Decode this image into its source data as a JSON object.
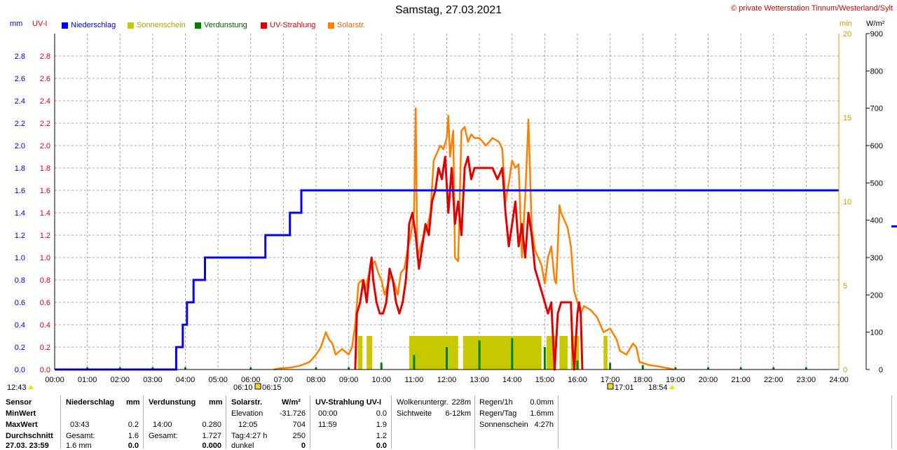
{
  "title": "Samstag, 27.03.2021",
  "copyright": "© private Wetterstation Tinnum/Westerland/Sylt",
  "units": {
    "mm": "mm",
    "uvi": "UV-I",
    "min": "min",
    "wm2": "W/m²"
  },
  "colors": {
    "niederschlag": "#0000ff",
    "sonnenschein": "#c8c800",
    "verdunstung": "#008000",
    "uv": "#e00000",
    "solar": "#ff8000",
    "grid": "#a0a0a0"
  },
  "legend": [
    {
      "label": "Niederschlag",
      "color": "#0000ff"
    },
    {
      "label": "Sonnenschein",
      "color": "#c8c800"
    },
    {
      "label": "Verdunstung",
      "color": "#008000"
    },
    {
      "label": "UV-Strahlung",
      "color": "#e00000"
    },
    {
      "label": "Solarstr.",
      "color": "#ff8000"
    }
  ],
  "markers": {
    "left": "12:43",
    "sunrise_a": "06:10",
    "sunrise_b": "06:15",
    "sunset_a": "17:01",
    "sunset_b": "18:54"
  },
  "chart_data": {
    "type": "line",
    "title": "Samstag, 27.03.2021",
    "x_ticks": [
      "00:00",
      "01:00",
      "02:00",
      "03:00",
      "04:00",
      "05:00",
      "06:00",
      "07:00",
      "08:00",
      "09:00",
      "10:00",
      "11:00",
      "12:00",
      "13:00",
      "14:00",
      "15:00",
      "16:00",
      "17:00",
      "18:00",
      "19:00",
      "20:00",
      "21:00",
      "22:00",
      "23:00",
      "24:00"
    ],
    "y_left_ticks": [
      "0.0",
      "0.2",
      "0.4",
      "0.6",
      "0.8",
      "1.0",
      "1.2",
      "1.4",
      "1.6",
      "1.8",
      "2.0",
      "2.2",
      "2.4",
      "2.6",
      "2.8"
    ],
    "y_min_ticks": [
      "0",
      "5",
      "10",
      "15",
      "20"
    ],
    "y_wm2_ticks": [
      "0",
      "100",
      "200",
      "300",
      "400",
      "500",
      "600",
      "700",
      "800",
      "900"
    ],
    "ylim_mm": [
      0,
      3.0
    ],
    "ylim_uvi": [
      0,
      3.0
    ],
    "ylim_min": [
      0,
      20
    ],
    "ylim_wm2": [
      0,
      900
    ],
    "grid": true,
    "series": [
      {
        "name": "Niederschlag",
        "unit": "mm",
        "color": "#0000ff",
        "points": [
          [
            0,
            0
          ],
          [
            3.72,
            0
          ],
          [
            3.72,
            0.2
          ],
          [
            3.92,
            0.2
          ],
          [
            3.92,
            0.4
          ],
          [
            4.05,
            0.4
          ],
          [
            4.05,
            0.6
          ],
          [
            4.25,
            0.6
          ],
          [
            4.25,
            0.8
          ],
          [
            4.6,
            0.8
          ],
          [
            4.6,
            1.0
          ],
          [
            6.45,
            1.0
          ],
          [
            6.45,
            1.2
          ],
          [
            7.2,
            1.2
          ],
          [
            7.2,
            1.4
          ],
          [
            7.55,
            1.4
          ],
          [
            7.55,
            1.6
          ],
          [
            24,
            1.6
          ]
        ]
      },
      {
        "name": "UV-Strahlung",
        "unit": "UV-I",
        "color": "#e00000",
        "points": [
          [
            9.2,
            0
          ],
          [
            9.25,
            0.5
          ],
          [
            9.35,
            0.6
          ],
          [
            9.45,
            0.8
          ],
          [
            9.55,
            0.6
          ],
          [
            9.65,
            0.9
          ],
          [
            9.7,
            1.0
          ],
          [
            9.75,
            0.8
          ],
          [
            9.85,
            0.6
          ],
          [
            9.95,
            0.5
          ],
          [
            10.05,
            0.5
          ],
          [
            10.15,
            0.6
          ],
          [
            10.25,
            0.9
          ],
          [
            10.35,
            0.8
          ],
          [
            10.45,
            0.6
          ],
          [
            10.55,
            0.5
          ],
          [
            10.65,
            0.6
          ],
          [
            10.75,
            0.8
          ],
          [
            10.8,
            1.0
          ],
          [
            10.85,
            1.3
          ],
          [
            10.95,
            1.4
          ],
          [
            11.05,
            1.2
          ],
          [
            11.15,
            0.9
          ],
          [
            11.25,
            1.1
          ],
          [
            11.35,
            1.3
          ],
          [
            11.45,
            1.2
          ],
          [
            11.55,
            1.5
          ],
          [
            11.65,
            1.6
          ],
          [
            11.75,
            1.8
          ],
          [
            11.85,
            1.7
          ],
          [
            11.95,
            1.9
          ],
          [
            12.05,
            1.4
          ],
          [
            12.15,
            1.8
          ],
          [
            12.25,
            1.3
          ],
          [
            12.35,
            1.5
          ],
          [
            12.45,
            1.2
          ],
          [
            12.55,
            1.8
          ],
          [
            12.65,
            1.9
          ],
          [
            12.75,
            1.7
          ],
          [
            12.85,
            1.8
          ],
          [
            13.0,
            1.8
          ],
          [
            13.2,
            1.8
          ],
          [
            13.4,
            1.8
          ],
          [
            13.55,
            1.7
          ],
          [
            13.7,
            1.8
          ],
          [
            13.8,
            1.4
          ],
          [
            13.9,
            1.1
          ],
          [
            14.0,
            1.3
          ],
          [
            14.1,
            1.5
          ],
          [
            14.2,
            1.1
          ],
          [
            14.3,
            1.3
          ],
          [
            14.4,
            1.0
          ],
          [
            14.5,
            1.4
          ],
          [
            14.6,
            1.2
          ],
          [
            14.7,
            0.9
          ],
          [
            14.8,
            0.8
          ],
          [
            14.9,
            0.7
          ],
          [
            15.0,
            0.6
          ],
          [
            15.1,
            0.5
          ],
          [
            15.2,
            0.6
          ],
          [
            15.3,
            0.0
          ],
          [
            15.4,
            0.5
          ],
          [
            15.5,
            0.6
          ],
          [
            15.6,
            0.6
          ],
          [
            15.7,
            0.6
          ],
          [
            15.8,
            0.6
          ],
          [
            15.85,
            0.2
          ],
          [
            15.9,
            0.0
          ],
          [
            16.0,
            0.5
          ],
          [
            16.05,
            0.6
          ],
          [
            16.1,
            0.5
          ],
          [
            16.15,
            0.0
          ]
        ]
      },
      {
        "name": "Solarstr.",
        "unit": "W/m²",
        "color": "#ff8000",
        "points": [
          [
            6.7,
            0
          ],
          [
            6.9,
            3
          ],
          [
            7.2,
            5
          ],
          [
            7.5,
            10
          ],
          [
            7.8,
            20
          ],
          [
            8.0,
            40
          ],
          [
            8.15,
            60
          ],
          [
            8.3,
            100
          ],
          [
            8.4,
            80
          ],
          [
            8.5,
            70
          ],
          [
            8.6,
            40
          ],
          [
            8.8,
            55
          ],
          [
            9.0,
            40
          ],
          [
            9.1,
            60
          ],
          [
            9.2,
            120
          ],
          [
            9.3,
            230
          ],
          [
            9.4,
            240
          ],
          [
            9.5,
            210
          ],
          [
            9.6,
            250
          ],
          [
            9.7,
            280
          ],
          [
            9.8,
            290
          ],
          [
            9.9,
            260
          ],
          [
            10.0,
            240
          ],
          [
            10.1,
            200
          ],
          [
            10.2,
            230
          ],
          [
            10.3,
            250
          ],
          [
            10.4,
            230
          ],
          [
            10.5,
            200
          ],
          [
            10.6,
            260
          ],
          [
            10.7,
            270
          ],
          [
            10.8,
            320
          ],
          [
            10.9,
            360
          ],
          [
            11.0,
            420
          ],
          [
            11.05,
            700
          ],
          [
            11.1,
            300
          ],
          [
            11.2,
            330
          ],
          [
            11.3,
            360
          ],
          [
            11.4,
            380
          ],
          [
            11.5,
            420
          ],
          [
            11.6,
            560
          ],
          [
            11.7,
            580
          ],
          [
            11.8,
            600
          ],
          [
            11.9,
            590
          ],
          [
            12.0,
            620
          ],
          [
            12.05,
            680
          ],
          [
            12.1,
            570
          ],
          [
            12.2,
            640
          ],
          [
            12.25,
            300
          ],
          [
            12.35,
            290
          ],
          [
            12.45,
            640
          ],
          [
            12.55,
            650
          ],
          [
            12.65,
            610
          ],
          [
            12.75,
            630
          ],
          [
            12.85,
            620
          ],
          [
            13.0,
            620
          ],
          [
            13.2,
            600
          ],
          [
            13.4,
            620
          ],
          [
            13.6,
            610
          ],
          [
            13.7,
            590
          ],
          [
            13.8,
            450
          ],
          [
            13.9,
            500
          ],
          [
            14.0,
            560
          ],
          [
            14.1,
            540
          ],
          [
            14.2,
            550
          ],
          [
            14.3,
            300
          ],
          [
            14.4,
            460
          ],
          [
            14.5,
            670
          ],
          [
            14.6,
            380
          ],
          [
            14.7,
            320
          ],
          [
            14.8,
            300
          ],
          [
            14.9,
            280
          ],
          [
            15.0,
            230
          ],
          [
            15.1,
            300
          ],
          [
            15.2,
            330
          ],
          [
            15.3,
            240
          ],
          [
            15.35,
            230
          ],
          [
            15.45,
            440
          ],
          [
            15.5,
            420
          ],
          [
            15.6,
            400
          ],
          [
            15.7,
            380
          ],
          [
            15.8,
            330
          ],
          [
            15.9,
            210
          ],
          [
            16.0,
            180
          ],
          [
            16.1,
            150
          ],
          [
            16.2,
            170
          ],
          [
            16.4,
            160
          ],
          [
            16.6,
            140
          ],
          [
            16.8,
            100
          ],
          [
            17.0,
            110
          ],
          [
            17.2,
            80
          ],
          [
            17.3,
            50
          ],
          [
            17.5,
            40
          ],
          [
            17.7,
            70
          ],
          [
            17.8,
            60
          ],
          [
            17.9,
            20
          ],
          [
            18.2,
            12
          ],
          [
            18.5,
            8
          ],
          [
            18.8,
            3
          ],
          [
            18.95,
            0
          ]
        ]
      },
      {
        "name": "Sonnenschein",
        "unit": "min",
        "color": "#c8c800",
        "intervals": [
          [
            9.28,
            9.42,
            2
          ],
          [
            9.55,
            9.72,
            2
          ],
          [
            10.85,
            12.35,
            2
          ],
          [
            12.5,
            14.9,
            2
          ],
          [
            15.05,
            15.35,
            2
          ],
          [
            15.45,
            15.7,
            2
          ],
          [
            15.8,
            16.05,
            2
          ],
          [
            16.8,
            16.92,
            2
          ]
        ]
      },
      {
        "name": "Verdunstung",
        "unit": "mm",
        "color": "#008000",
        "points": [
          [
            1.0,
            0.02
          ],
          [
            2.0,
            0.02
          ],
          [
            3.0,
            0.02
          ],
          [
            4.0,
            0.02
          ],
          [
            6.0,
            0.02
          ],
          [
            8.0,
            0.02
          ],
          [
            9.0,
            0.02
          ],
          [
            10.0,
            0.06
          ],
          [
            11.0,
            0.13
          ],
          [
            12.0,
            0.2
          ],
          [
            13.0,
            0.26
          ],
          [
            14.0,
            0.28
          ],
          [
            15.0,
            0.2
          ],
          [
            16.0,
            0.08
          ],
          [
            17.0,
            0.06
          ],
          [
            18.0,
            0.04
          ],
          [
            19.0,
            0.02
          ],
          [
            20.0,
            0.02
          ],
          [
            21.0,
            0.02
          ],
          [
            22.0,
            0.02
          ],
          [
            23.0,
            0.02
          ]
        ]
      }
    ]
  },
  "table": {
    "rows": [
      "Sensor",
      "MinWert",
      "MaxWert",
      "Durchschnitt",
      "27.03. 23:59"
    ],
    "niederschlag": {
      "header": "Niederschlag",
      "unit": "mm",
      "max_time": "03:43",
      "max_val": "0.2",
      "gesamt_label": "Gesamt:",
      "gesamt_val": "1.6",
      "last_a": "1.6 mm",
      "last_b": "0.0"
    },
    "verdunstung": {
      "header": "Verdunstung",
      "unit": "mm",
      "max_time": "14:00",
      "max_val": "0.280",
      "gesamt_label": "Gesamt:",
      "gesamt_val": "1.727",
      "last_b": "0.000"
    },
    "solar": {
      "header": "Solarstr.",
      "unit": "W/m²",
      "r1_label": "Elevation",
      "r1_val": "-31.726",
      "r2_label": "12:05",
      "r2_val": "704",
      "r3_label": "Tag:4:27 h",
      "r3_val": "250",
      "r4_label": "dunkel",
      "r4_val": "0"
    },
    "uv": {
      "header": "UV-Strahlung UV-I",
      "r1_label": "00:00",
      "r1_val": "0.0",
      "r2_label": "11:59",
      "r2_val": "1.9",
      "r3_val": "1.2",
      "r4_val": "0.0"
    },
    "wolken": {
      "l1": "Wolkenuntergr.",
      "v1": "228m",
      "l2": "Sichtweite",
      "v2": "6-12km"
    },
    "regen": {
      "l1": "Regen/1h",
      "v1": "0.0mm",
      "l2": "Regen/Tag",
      "v2": "1.6mm",
      "l3": "Sonnenschein",
      "v3": "4:27h"
    }
  }
}
